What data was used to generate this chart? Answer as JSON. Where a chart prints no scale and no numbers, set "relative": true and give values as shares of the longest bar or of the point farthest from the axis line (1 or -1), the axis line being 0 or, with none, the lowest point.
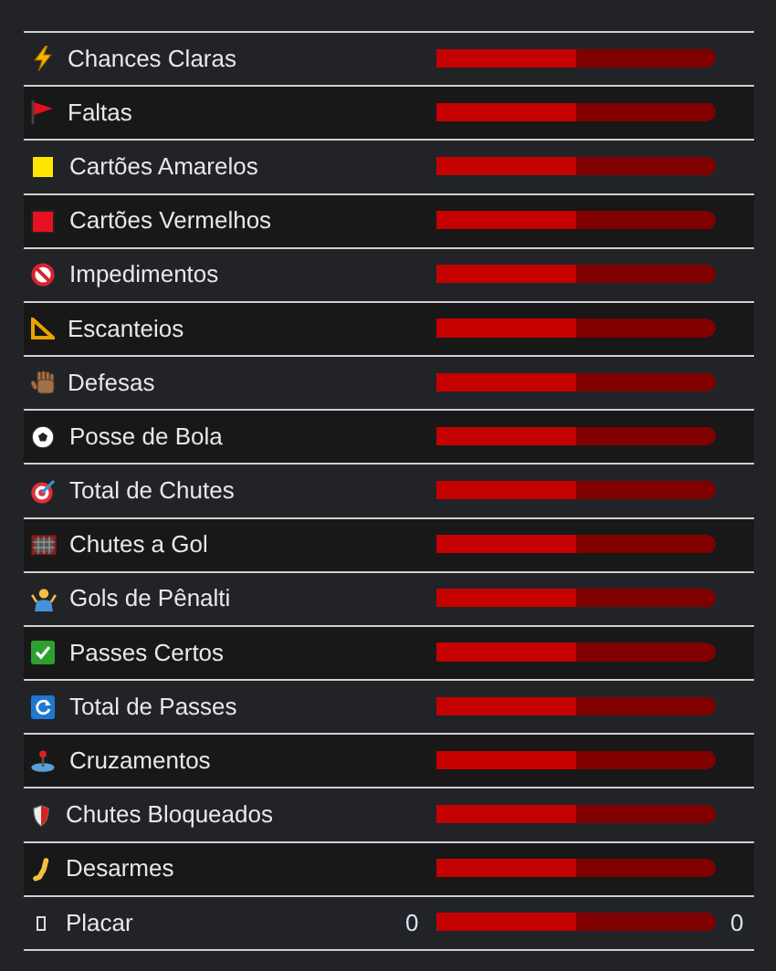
{
  "chart_data": {
    "type": "bar",
    "orientation": "horizontal",
    "stacked": true,
    "relative": true,
    "tick_labels": "y",
    "categories": [
      "Chances Claras",
      "Faltas",
      "Cartões Amarelos",
      "Cartões Vermelhos",
      "Impedimentos",
      "Escanteios",
      "Defesas",
      "Posse de Bola",
      "Total de Chutes",
      "Chutes a Gol",
      "Gols de Pênalti",
      "Passes Certos",
      "Total de Passes",
      "Cruzamentos",
      "Chutes Bloqueados",
      "Desarmes",
      "Placar"
    ],
    "series": [
      {
        "color": "#c40000",
        "values": [
          0.5,
          0.5,
          0.5,
          0.5,
          0.5,
          0.5,
          0.5,
          0.5,
          0.5,
          0.5,
          0.5,
          0.5,
          0.5,
          0.5,
          0.5,
          0.5,
          0.5
        ]
      },
      {
        "color": "#800000",
        "values": [
          0.5,
          0.5,
          0.5,
          0.5,
          0.5,
          0.5,
          0.5,
          0.5,
          0.5,
          0.5,
          0.5,
          0.5,
          0.5,
          0.5,
          0.5,
          0.5,
          0.5
        ]
      }
    ],
    "annotations": [
      {
        "text": "0",
        "x": 0,
        "y": "Placar"
      },
      {
        "text": "0",
        "x": 1,
        "y": "Placar"
      }
    ]
  }
}
